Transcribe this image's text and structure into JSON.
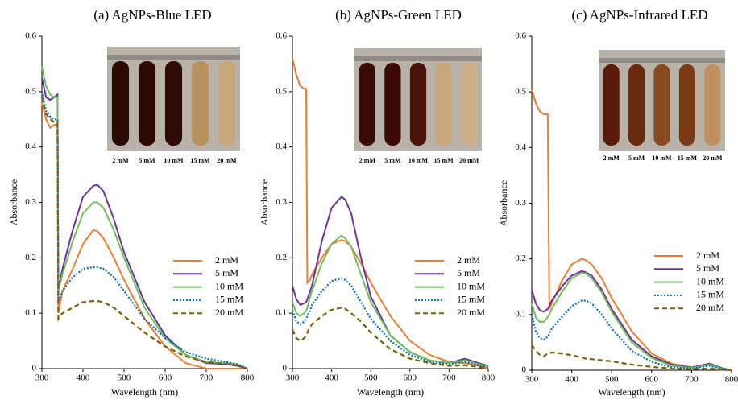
{
  "chart_data": [
    {
      "type": "line",
      "title": "(a) AgNPs-Blue LED",
      "x_label": "Wavelength (nm)",
      "y_label": "Absorbance",
      "xlim": [
        300,
        800
      ],
      "xticks": [
        300,
        400,
        500,
        600,
        700,
        800
      ],
      "ylim": [
        0,
        0.6
      ],
      "yticks": [
        0,
        0.1,
        0.2,
        0.3,
        0.4,
        0.5,
        0.6
      ],
      "inset_labels": [
        "2 mM",
        "5 mM",
        "10 mM",
        "15 mM",
        "20 mM"
      ],
      "x": [
        300,
        310,
        320,
        330,
        338,
        340,
        345,
        350,
        375,
        400,
        425,
        435,
        450,
        475,
        500,
        550,
        600,
        650,
        700,
        750,
        775,
        800
      ],
      "series": [
        {
          "name": "2 mM",
          "color": "#ed7d31",
          "style": "solid",
          "values": [
            0.48,
            0.45,
            0.435,
            0.44,
            0.44,
            0.1,
            0.12,
            0.14,
            0.18,
            0.225,
            0.25,
            0.248,
            0.235,
            0.2,
            0.16,
            0.09,
            0.04,
            0.01,
            0.0,
            0.0,
            0.0,
            0.0
          ]
        },
        {
          "name": "5 mM",
          "color": "#7030a0",
          "style": "solid",
          "values": [
            0.525,
            0.49,
            0.485,
            0.49,
            0.495,
            0.15,
            0.16,
            0.18,
            0.25,
            0.31,
            0.33,
            0.332,
            0.32,
            0.27,
            0.21,
            0.12,
            0.06,
            0.025,
            0.01,
            0.008,
            0.005,
            0.0
          ]
        },
        {
          "name": "10 mM",
          "color": "#70c05a",
          "style": "solid",
          "values": [
            0.545,
            0.51,
            0.495,
            0.49,
            0.49,
            0.14,
            0.155,
            0.17,
            0.23,
            0.28,
            0.3,
            0.3,
            0.29,
            0.25,
            0.2,
            0.11,
            0.055,
            0.025,
            0.012,
            0.01,
            0.008,
            0.0
          ]
        },
        {
          "name": "15 mM",
          "color": "#0070c0",
          "style": "dotted",
          "values": [
            0.5,
            0.465,
            0.455,
            0.45,
            0.45,
            0.12,
            0.13,
            0.14,
            0.165,
            0.18,
            0.183,
            0.183,
            0.18,
            0.165,
            0.14,
            0.09,
            0.055,
            0.03,
            0.018,
            0.012,
            0.008,
            0.0
          ]
        },
        {
          "name": "20 mM",
          "color": "#7f6000",
          "style": "dashed",
          "values": [
            0.49,
            0.46,
            0.45,
            0.445,
            0.445,
            0.09,
            0.095,
            0.1,
            0.11,
            0.12,
            0.122,
            0.122,
            0.12,
            0.11,
            0.095,
            0.065,
            0.04,
            0.022,
            0.012,
            0.008,
            0.006,
            0.0
          ]
        }
      ]
    },
    {
      "type": "line",
      "title": "(b) AgNPs-Green LED",
      "x_label": "Wavelength (nm)",
      "y_label": "Absorbance",
      "xlim": [
        300,
        800
      ],
      "xticks": [
        300,
        400,
        500,
        600,
        700,
        800
      ],
      "ylim": [
        0,
        0.6
      ],
      "yticks": [
        0,
        0.1,
        0.2,
        0.3,
        0.4,
        0.5,
        0.6
      ],
      "inset_labels": [
        "2 mM",
        "5 mM",
        "10 mM",
        "15 mM",
        "20 mM"
      ],
      "x": [
        300,
        310,
        320,
        330,
        335,
        338,
        345,
        350,
        375,
        400,
        425,
        435,
        450,
        475,
        500,
        550,
        600,
        650,
        700,
        740,
        775,
        800
      ],
      "series": [
        {
          "name": "2 mM",
          "color": "#ed7d31",
          "style": "solid",
          "values": [
            0.56,
            0.53,
            0.51,
            0.505,
            0.505,
            0.155,
            0.16,
            0.17,
            0.2,
            0.225,
            0.232,
            0.23,
            0.22,
            0.19,
            0.155,
            0.095,
            0.05,
            0.025,
            0.012,
            0.01,
            0.005,
            0.0
          ]
        },
        {
          "name": "5 mM",
          "color": "#7030a0",
          "style": "solid",
          "values": [
            0.15,
            0.125,
            0.115,
            0.118,
            0.12,
            0.125,
            0.14,
            0.15,
            0.23,
            0.29,
            0.31,
            0.305,
            0.28,
            0.2,
            0.13,
            0.06,
            0.03,
            0.015,
            0.01,
            0.018,
            0.01,
            0.005
          ]
        },
        {
          "name": "10 mM",
          "color": "#70c05a",
          "style": "solid",
          "values": [
            0.12,
            0.1,
            0.095,
            0.1,
            0.105,
            0.11,
            0.13,
            0.14,
            0.19,
            0.225,
            0.24,
            0.235,
            0.22,
            0.17,
            0.12,
            0.06,
            0.03,
            0.015,
            0.01,
            0.015,
            0.008,
            0.004
          ]
        },
        {
          "name": "15 mM",
          "color": "#0070c0",
          "style": "dotted",
          "values": [
            0.105,
            0.085,
            0.08,
            0.085,
            0.09,
            0.095,
            0.105,
            0.115,
            0.14,
            0.158,
            0.163,
            0.16,
            0.15,
            0.12,
            0.09,
            0.05,
            0.025,
            0.012,
            0.008,
            0.012,
            0.006,
            0.003
          ]
        },
        {
          "name": "20 mM",
          "color": "#7f6000",
          "style": "dashed",
          "values": [
            0.07,
            0.055,
            0.05,
            0.055,
            0.06,
            0.065,
            0.075,
            0.08,
            0.095,
            0.106,
            0.11,
            0.108,
            0.1,
            0.085,
            0.065,
            0.035,
            0.018,
            0.01,
            0.005,
            0.006,
            0.003,
            0.0
          ]
        }
      ]
    },
    {
      "type": "line",
      "title": "(c) AgNPs-Infrared LED",
      "x_label": "Wavelength (nm)",
      "y_label": "Absorbance",
      "xlim": [
        300,
        800
      ],
      "xticks": [
        300,
        400,
        500,
        600,
        700,
        800
      ],
      "ylim": [
        0,
        0.6
      ],
      "yticks": [
        0,
        0.1,
        0.2,
        0.3,
        0.4,
        0.5,
        0.6
      ],
      "inset_labels": [
        "2 mM",
        "5 mM",
        "10 mM",
        "15 mM",
        "20 mM"
      ],
      "x": [
        300,
        310,
        320,
        330,
        340,
        344,
        350,
        375,
        400,
        425,
        435,
        450,
        475,
        500,
        550,
        600,
        650,
        700,
        745,
        775,
        800
      ],
      "series": [
        {
          "name": "2 mM",
          "color": "#ed7d31",
          "style": "solid",
          "values": [
            0.505,
            0.48,
            0.465,
            0.46,
            0.46,
            0.11,
            0.12,
            0.16,
            0.19,
            0.2,
            0.198,
            0.19,
            0.165,
            0.13,
            0.07,
            0.03,
            0.012,
            0.005,
            0.01,
            0.004,
            0.0
          ]
        },
        {
          "name": "5 mM",
          "color": "#7030a0",
          "style": "solid",
          "values": [
            0.145,
            0.12,
            0.108,
            0.105,
            0.11,
            0.115,
            0.125,
            0.15,
            0.17,
            0.178,
            0.176,
            0.17,
            0.145,
            0.11,
            0.055,
            0.025,
            0.01,
            0.005,
            0.012,
            0.004,
            0.0
          ]
        },
        {
          "name": "10 mM",
          "color": "#70c05a",
          "style": "solid",
          "values": [
            0.12,
            0.095,
            0.087,
            0.087,
            0.095,
            0.1,
            0.11,
            0.14,
            0.165,
            0.175,
            0.174,
            0.165,
            0.14,
            0.105,
            0.05,
            0.022,
            0.008,
            0.004,
            0.01,
            0.003,
            0.0
          ]
        },
        {
          "name": "15 mM",
          "color": "#0070c0",
          "style": "dotted",
          "values": [
            0.1,
            0.07,
            0.058,
            0.055,
            0.06,
            0.065,
            0.075,
            0.095,
            0.115,
            0.125,
            0.125,
            0.12,
            0.1,
            0.075,
            0.035,
            0.015,
            0.005,
            0.003,
            0.008,
            0.002,
            0.0
          ]
        },
        {
          "name": "20 mM",
          "color": "#7f6000",
          "style": "dashed",
          "values": [
            0.045,
            0.035,
            0.028,
            0.025,
            0.03,
            0.03,
            0.032,
            0.03,
            0.027,
            0.023,
            0.021,
            0.02,
            0.018,
            0.016,
            0.01,
            0.006,
            0.003,
            0.002,
            0.003,
            0.001,
            0.0
          ]
        }
      ]
    }
  ]
}
